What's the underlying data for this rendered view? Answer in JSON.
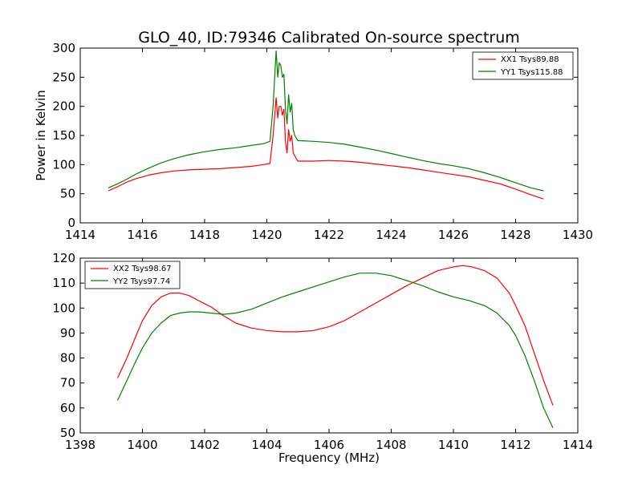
{
  "chart_data": [
    {
      "type": "line",
      "title": "GLO_40, ID:79346 Calibrated On-source spectrum",
      "xlabel": "",
      "ylabel": "Power in Kelvin",
      "xlim": [
        1414,
        1430
      ],
      "ylim": [
        0,
        300
      ],
      "x_ticks": [
        1414,
        1416,
        1418,
        1420,
        1422,
        1424,
        1426,
        1428,
        1430
      ],
      "y_ticks": [
        0,
        50,
        100,
        150,
        200,
        250,
        300
      ],
      "grid": false,
      "legend": "top-right",
      "series": [
        {
          "name": "XX1 Tsys89.88",
          "color": "#ff0000",
          "x": [
            1414.9,
            1415.2,
            1415.5,
            1415.8,
            1416.2,
            1416.6,
            1417.0,
            1417.5,
            1418.0,
            1418.5,
            1419.0,
            1419.5,
            1419.9,
            1420.1,
            1420.2,
            1420.3,
            1420.35,
            1420.4,
            1420.45,
            1420.5,
            1420.55,
            1420.6,
            1420.65,
            1420.7,
            1420.75,
            1420.8,
            1420.85,
            1420.9,
            1420.95,
            1421.0,
            1421.1,
            1421.5,
            1422.0,
            1422.5,
            1423.0,
            1423.5,
            1424.0,
            1424.5,
            1425.0,
            1425.5,
            1426.0,
            1426.5,
            1427.0,
            1427.5,
            1428.0,
            1428.5,
            1428.9
          ],
          "values": [
            55,
            62,
            70,
            76,
            82,
            86,
            89,
            91,
            92,
            93,
            95,
            97,
            100,
            102,
            150,
            215,
            180,
            200,
            200,
            185,
            195,
            140,
            120,
            160,
            140,
            150,
            120,
            115,
            110,
            106,
            106,
            106,
            107,
            106,
            104,
            101,
            98,
            95,
            91,
            87,
            83,
            79,
            73,
            67,
            58,
            48,
            41
          ]
        },
        {
          "name": "YY1 Tsys115.88",
          "color": "#008000",
          "x": [
            1414.9,
            1415.2,
            1415.5,
            1415.8,
            1416.2,
            1416.6,
            1417.0,
            1417.5,
            1418.0,
            1418.5,
            1419.0,
            1419.5,
            1419.9,
            1420.1,
            1420.2,
            1420.3,
            1420.35,
            1420.4,
            1420.45,
            1420.5,
            1420.55,
            1420.6,
            1420.65,
            1420.7,
            1420.75,
            1420.8,
            1420.85,
            1420.9,
            1420.95,
            1421.0,
            1421.1,
            1421.5,
            1422.0,
            1422.5,
            1423.0,
            1423.5,
            1424.0,
            1424.5,
            1425.0,
            1425.5,
            1426.0,
            1426.5,
            1427.0,
            1427.5,
            1428.0,
            1428.5,
            1428.9
          ],
          "values": [
            60,
            67,
            75,
            84,
            94,
            103,
            110,
            117,
            122,
            126,
            129,
            133,
            136,
            140,
            200,
            295,
            250,
            275,
            270,
            250,
            255,
            195,
            170,
            220,
            190,
            205,
            160,
            150,
            145,
            141,
            141,
            140,
            138,
            135,
            130,
            125,
            119,
            113,
            107,
            102,
            98,
            93,
            86,
            78,
            69,
            60,
            55
          ]
        }
      ]
    },
    {
      "type": "line",
      "title": "",
      "xlabel": "Frequency (MHz)",
      "ylabel": "",
      "xlim": [
        1398,
        1414
      ],
      "ylim": [
        50,
        120
      ],
      "x_ticks": [
        1398,
        1400,
        1402,
        1404,
        1406,
        1408,
        1410,
        1412,
        1414
      ],
      "y_ticks": [
        50,
        60,
        70,
        80,
        90,
        100,
        110,
        120
      ],
      "grid": false,
      "legend": "top-left",
      "series": [
        {
          "name": "XX2 Tsys98.67",
          "color": "#ff0000",
          "x": [
            1399.2,
            1399.5,
            1399.8,
            1400.0,
            1400.3,
            1400.6,
            1400.9,
            1401.2,
            1401.5,
            1401.8,
            1402.2,
            1402.6,
            1403.0,
            1403.5,
            1404.0,
            1404.5,
            1405.0,
            1405.5,
            1406.0,
            1406.5,
            1407.0,
            1407.5,
            1408.0,
            1408.5,
            1409.0,
            1409.5,
            1410.0,
            1410.3,
            1410.6,
            1411.0,
            1411.4,
            1411.8,
            1412.0,
            1412.3,
            1412.6,
            1412.9,
            1413.2
          ],
          "values": [
            72,
            80,
            89,
            95,
            101,
            104.5,
            106,
            106,
            105,
            103,
            100.5,
            97,
            94,
            92,
            91,
            90.5,
            90.5,
            91,
            92.5,
            95,
            98.5,
            102,
            105.5,
            109,
            112,
            115,
            116.5,
            117,
            116.5,
            115,
            112,
            106,
            101,
            93,
            82,
            71,
            61
          ]
        },
        {
          "name": "YY2 Tsys97.74",
          "color": "#008000",
          "x": [
            1399.2,
            1399.5,
            1399.8,
            1400.0,
            1400.3,
            1400.6,
            1400.9,
            1401.2,
            1401.5,
            1401.8,
            1402.2,
            1402.6,
            1403.0,
            1403.5,
            1404.0,
            1404.5,
            1405.0,
            1405.5,
            1406.0,
            1406.5,
            1407.0,
            1407.5,
            1408.0,
            1408.5,
            1409.0,
            1409.5,
            1410.0,
            1410.5,
            1411.0,
            1411.4,
            1411.8,
            1412.0,
            1412.3,
            1412.6,
            1412.9,
            1413.2
          ],
          "values": [
            63,
            71,
            79,
            84,
            90,
            94,
            97,
            98,
            98.5,
            98.5,
            98,
            97.5,
            98,
            99.5,
            102,
            104.5,
            106.5,
            108.5,
            110.5,
            112.5,
            114,
            114,
            113,
            111,
            109,
            106.5,
            104.5,
            103,
            101,
            98,
            93,
            89,
            81,
            71,
            60,
            52
          ]
        }
      ]
    }
  ]
}
